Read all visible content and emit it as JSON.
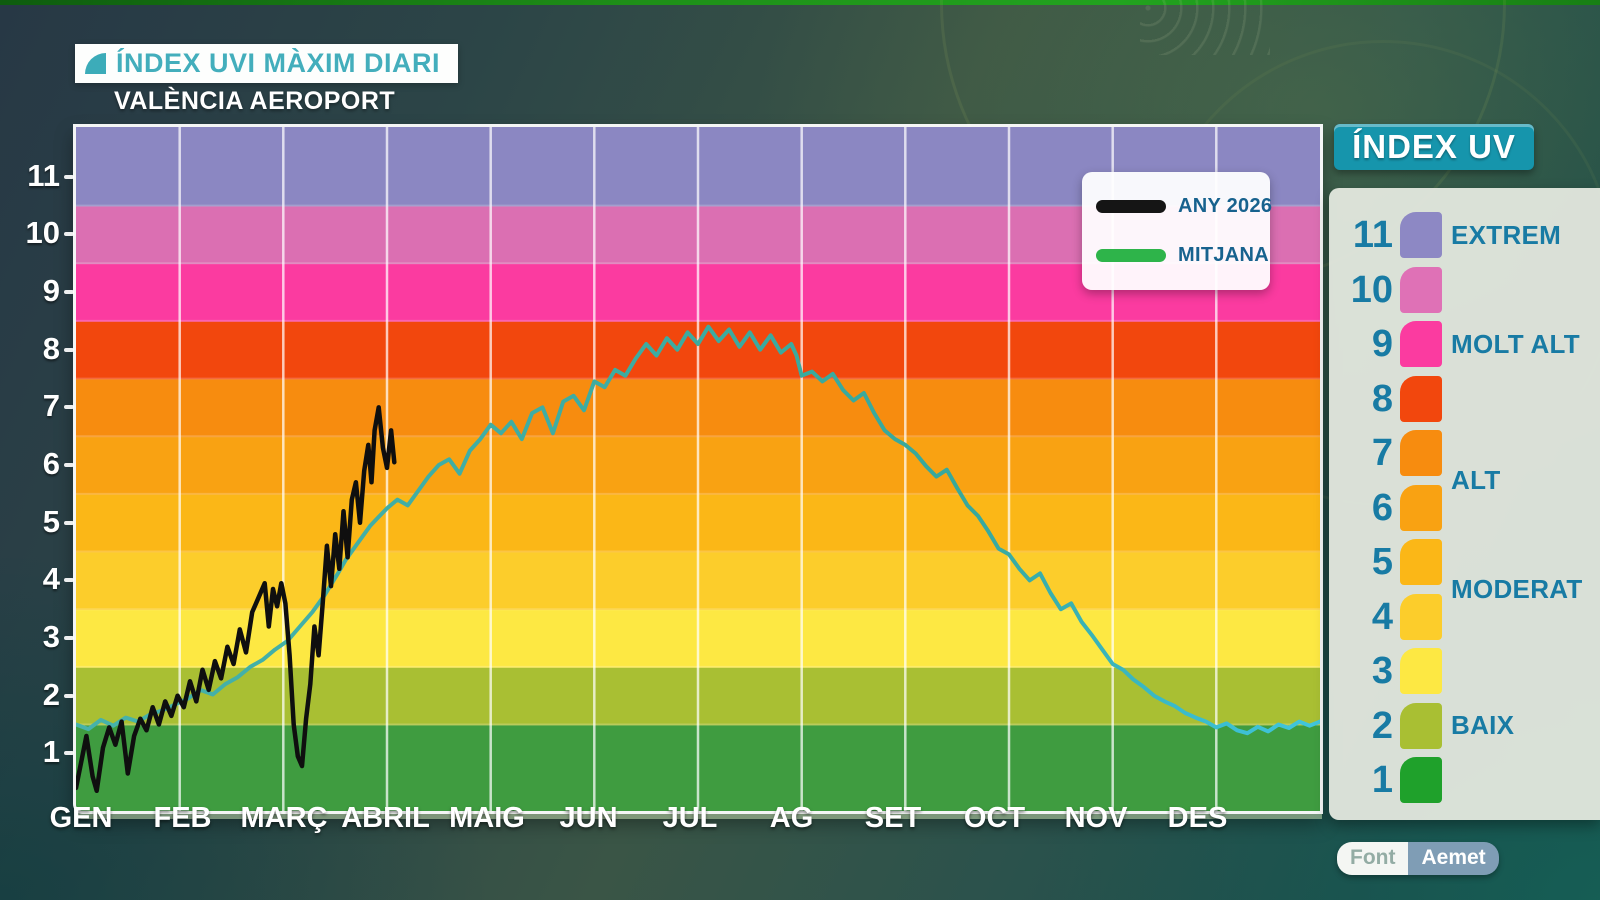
{
  "header": {
    "title": "ÍNDEX UVI MÀXIM DIARI",
    "subtitle": "VALÈNCIA AEROPORT"
  },
  "legend": {
    "items": [
      {
        "label": "ANY 2026",
        "color": "#151515"
      },
      {
        "label": "MITJANA",
        "color": "#2eb44a"
      }
    ]
  },
  "uv_panel": {
    "title": "ÍNDEX UV",
    "rows": [
      {
        "value": "11",
        "color": "#8d88c4",
        "label": "EXTREM",
        "label_pos": "row"
      },
      {
        "value": "10",
        "color": "#df71b6",
        "label": "",
        "label_pos": ""
      },
      {
        "value": "9",
        "color": "#fb3ba0",
        "label": "MOLT ALT",
        "label_pos": "row"
      },
      {
        "value": "8",
        "color": "#f2470d",
        "label": "",
        "label_pos": ""
      },
      {
        "value": "7",
        "color": "#f78c0f",
        "label": "ALT",
        "label_pos": "below"
      },
      {
        "value": "6",
        "color": "#f9a212",
        "label": "",
        "label_pos": ""
      },
      {
        "value": "5",
        "color": "#fbb717",
        "label": "MODERAT",
        "label_pos": "below"
      },
      {
        "value": "4",
        "color": "#fccd2b",
        "label": "",
        "label_pos": ""
      },
      {
        "value": "3",
        "color": "#fde843",
        "label": "",
        "label_pos": ""
      },
      {
        "value": "2",
        "color": "#a9bf33",
        "label": "BAIX",
        "label_pos": "row"
      },
      {
        "value": "1",
        "color": "#1fa12b",
        "label": "",
        "label_pos": ""
      }
    ]
  },
  "source": {
    "label": "Font",
    "value": "Aemet"
  },
  "chart_data": {
    "type": "line",
    "title": "ÍNDEX UVI MÀXIM DIARI",
    "subtitle": "VALÈNCIA AEROPORT",
    "x_categories": [
      "GEN",
      "FEB",
      "MARÇ",
      "ABRIL",
      "MAIG",
      "JUN",
      "JUL",
      "AG",
      "SET",
      "OCT",
      "NOV",
      "DES"
    ],
    "x_unit": "months (0-12, day resolution)",
    "ylabel": "índex UVI màxim diari",
    "ylim": [
      0,
      11.85
    ],
    "yticks": [
      1,
      2,
      3,
      4,
      5,
      6,
      7,
      8,
      9,
      10,
      11
    ],
    "grid": "vertical white lines at month boundaries; faint horizontal lines at band boundaries",
    "legend_position": "top-right",
    "bands": [
      {
        "from": 0.0,
        "to": 1.5,
        "level": 1,
        "color": "#3f9c40"
      },
      {
        "from": 1.5,
        "to": 2.5,
        "level": 2,
        "color": "#a9bf33"
      },
      {
        "from": 2.5,
        "to": 3.5,
        "level": 3,
        "color": "#fde843"
      },
      {
        "from": 3.5,
        "to": 4.5,
        "level": 4,
        "color": "#fccd2b"
      },
      {
        "from": 4.5,
        "to": 5.5,
        "level": 5,
        "color": "#fbb717"
      },
      {
        "from": 5.5,
        "to": 6.5,
        "level": 6,
        "color": "#f9a212"
      },
      {
        "from": 6.5,
        "to": 7.5,
        "level": 7,
        "color": "#f78c0f"
      },
      {
        "from": 7.5,
        "to": 8.5,
        "level": 8,
        "color": "#f2470d"
      },
      {
        "from": 8.5,
        "to": 9.5,
        "level": 9,
        "color": "#fb3ba0"
      },
      {
        "from": 9.5,
        "to": 10.5,
        "level": 10,
        "color": "#db6fb2"
      },
      {
        "from": 10.5,
        "to": 11.87,
        "level": 11,
        "color": "#8b87c2"
      }
    ],
    "series": [
      {
        "name": "ANY 2026",
        "color": "#0f0f0f",
        "width": 4.5,
        "points": [
          [
            0,
            0.4
          ],
          [
            0.05,
            0.85
          ],
          [
            0.1,
            1.3
          ],
          [
            0.16,
            0.6
          ],
          [
            0.2,
            0.35
          ],
          [
            0.26,
            1.1
          ],
          [
            0.32,
            1.45
          ],
          [
            0.38,
            1.15
          ],
          [
            0.44,
            1.55
          ],
          [
            0.5,
            0.65
          ],
          [
            0.56,
            1.3
          ],
          [
            0.62,
            1.6
          ],
          [
            0.68,
            1.4
          ],
          [
            0.74,
            1.8
          ],
          [
            0.8,
            1.5
          ],
          [
            0.86,
            1.9
          ],
          [
            0.92,
            1.65
          ],
          [
            0.98,
            2.0
          ],
          [
            1.04,
            1.8
          ],
          [
            1.1,
            2.25
          ],
          [
            1.16,
            1.9
          ],
          [
            1.22,
            2.45
          ],
          [
            1.28,
            2.1
          ],
          [
            1.34,
            2.6
          ],
          [
            1.4,
            2.3
          ],
          [
            1.46,
            2.85
          ],
          [
            1.52,
            2.55
          ],
          [
            1.58,
            3.15
          ],
          [
            1.64,
            2.75
          ],
          [
            1.7,
            3.45
          ],
          [
            1.76,
            3.7
          ],
          [
            1.82,
            3.95
          ],
          [
            1.86,
            3.2
          ],
          [
            1.9,
            3.85
          ],
          [
            1.94,
            3.55
          ],
          [
            1.98,
            3.95
          ],
          [
            2.02,
            3.6
          ],
          [
            2.06,
            2.7
          ],
          [
            2.1,
            1.5
          ],
          [
            2.14,
            0.95
          ],
          [
            2.18,
            0.78
          ],
          [
            2.22,
            1.6
          ],
          [
            2.26,
            2.2
          ],
          [
            2.3,
            3.2
          ],
          [
            2.34,
            2.7
          ],
          [
            2.38,
            3.6
          ],
          [
            2.42,
            4.6
          ],
          [
            2.46,
            3.9
          ],
          [
            2.5,
            4.8
          ],
          [
            2.54,
            4.2
          ],
          [
            2.58,
            5.2
          ],
          [
            2.62,
            4.4
          ],
          [
            2.66,
            5.4
          ],
          [
            2.7,
            5.7
          ],
          [
            2.74,
            5.0
          ],
          [
            2.78,
            5.9
          ],
          [
            2.82,
            6.35
          ],
          [
            2.85,
            5.7
          ],
          [
            2.88,
            6.6
          ],
          [
            2.92,
            7.0
          ],
          [
            2.96,
            6.3
          ],
          [
            3.0,
            5.95
          ],
          [
            3.04,
            6.6
          ],
          [
            3.07,
            6.05
          ]
        ]
      },
      {
        "name": "MITJANA",
        "color": "#38a89b",
        "color_end": "#41c6dc",
        "width": 4,
        "points": [
          [
            0,
            1.5
          ],
          [
            0.12,
            1.42
          ],
          [
            0.24,
            1.58
          ],
          [
            0.36,
            1.48
          ],
          [
            0.48,
            1.62
          ],
          [
            0.6,
            1.55
          ],
          [
            0.72,
            1.68
          ],
          [
            0.84,
            1.75
          ],
          [
            0.96,
            1.85
          ],
          [
            1.08,
            1.95
          ],
          [
            1.2,
            2.1
          ],
          [
            1.32,
            2.02
          ],
          [
            1.44,
            2.2
          ],
          [
            1.56,
            2.32
          ],
          [
            1.68,
            2.5
          ],
          [
            1.8,
            2.62
          ],
          [
            1.92,
            2.8
          ],
          [
            2.04,
            2.95
          ],
          [
            2.16,
            3.2
          ],
          [
            2.28,
            3.45
          ],
          [
            2.4,
            3.75
          ],
          [
            2.52,
            4.1
          ],
          [
            2.6,
            4.35
          ],
          [
            2.68,
            4.55
          ],
          [
            2.76,
            4.75
          ],
          [
            2.84,
            4.95
          ],
          [
            2.92,
            5.1
          ],
          [
            3.0,
            5.25
          ],
          [
            3.1,
            5.4
          ],
          [
            3.2,
            5.3
          ],
          [
            3.3,
            5.55
          ],
          [
            3.4,
            5.8
          ],
          [
            3.5,
            6.0
          ],
          [
            3.6,
            6.1
          ],
          [
            3.7,
            5.85
          ],
          [
            3.8,
            6.25
          ],
          [
            3.9,
            6.45
          ],
          [
            4.0,
            6.7
          ],
          [
            4.1,
            6.55
          ],
          [
            4.2,
            6.75
          ],
          [
            4.3,
            6.45
          ],
          [
            4.4,
            6.9
          ],
          [
            4.5,
            7.0
          ],
          [
            4.6,
            6.55
          ],
          [
            4.7,
            7.1
          ],
          [
            4.8,
            7.2
          ],
          [
            4.9,
            6.95
          ],
          [
            5.0,
            7.45
          ],
          [
            5.1,
            7.35
          ],
          [
            5.2,
            7.65
          ],
          [
            5.3,
            7.55
          ],
          [
            5.4,
            7.85
          ],
          [
            5.5,
            8.1
          ],
          [
            5.6,
            7.9
          ],
          [
            5.7,
            8.2
          ],
          [
            5.8,
            8.0
          ],
          [
            5.9,
            8.3
          ],
          [
            6.0,
            8.1
          ],
          [
            6.1,
            8.4
          ],
          [
            6.2,
            8.15
          ],
          [
            6.3,
            8.35
          ],
          [
            6.4,
            8.05
          ],
          [
            6.5,
            8.3
          ],
          [
            6.6,
            8.0
          ],
          [
            6.7,
            8.25
          ],
          [
            6.8,
            7.95
          ],
          [
            6.9,
            8.1
          ],
          [
            6.95,
            7.9
          ],
          [
            7.0,
            7.55
          ],
          [
            7.1,
            7.62
          ],
          [
            7.2,
            7.45
          ],
          [
            7.3,
            7.58
          ],
          [
            7.4,
            7.3
          ],
          [
            7.5,
            7.12
          ],
          [
            7.6,
            7.25
          ],
          [
            7.7,
            6.9
          ],
          [
            7.8,
            6.6
          ],
          [
            7.9,
            6.45
          ],
          [
            8.0,
            6.35
          ],
          [
            8.1,
            6.2
          ],
          [
            8.2,
            5.98
          ],
          [
            8.3,
            5.8
          ],
          [
            8.4,
            5.92
          ],
          [
            8.5,
            5.6
          ],
          [
            8.6,
            5.3
          ],
          [
            8.7,
            5.12
          ],
          [
            8.8,
            4.85
          ],
          [
            8.9,
            4.55
          ],
          [
            9.0,
            4.45
          ],
          [
            9.1,
            4.2
          ],
          [
            9.2,
            4.0
          ],
          [
            9.3,
            4.12
          ],
          [
            9.4,
            3.78
          ],
          [
            9.5,
            3.5
          ],
          [
            9.6,
            3.6
          ],
          [
            9.7,
            3.28
          ],
          [
            9.8,
            3.05
          ],
          [
            9.9,
            2.8
          ],
          [
            10.0,
            2.55
          ],
          [
            10.1,
            2.45
          ],
          [
            10.2,
            2.28
          ],
          [
            10.3,
            2.15
          ],
          [
            10.4,
            2.0
          ],
          [
            10.5,
            1.9
          ],
          [
            10.6,
            1.82
          ],
          [
            10.7,
            1.7
          ],
          [
            10.8,
            1.62
          ],
          [
            10.9,
            1.55
          ],
          [
            11.0,
            1.45
          ],
          [
            11.1,
            1.52
          ],
          [
            11.2,
            1.4
          ],
          [
            11.3,
            1.35
          ],
          [
            11.4,
            1.46
          ],
          [
            11.5,
            1.38
          ],
          [
            11.6,
            1.5
          ],
          [
            11.7,
            1.44
          ],
          [
            11.8,
            1.55
          ],
          [
            11.9,
            1.48
          ],
          [
            12.0,
            1.55
          ]
        ]
      }
    ]
  }
}
